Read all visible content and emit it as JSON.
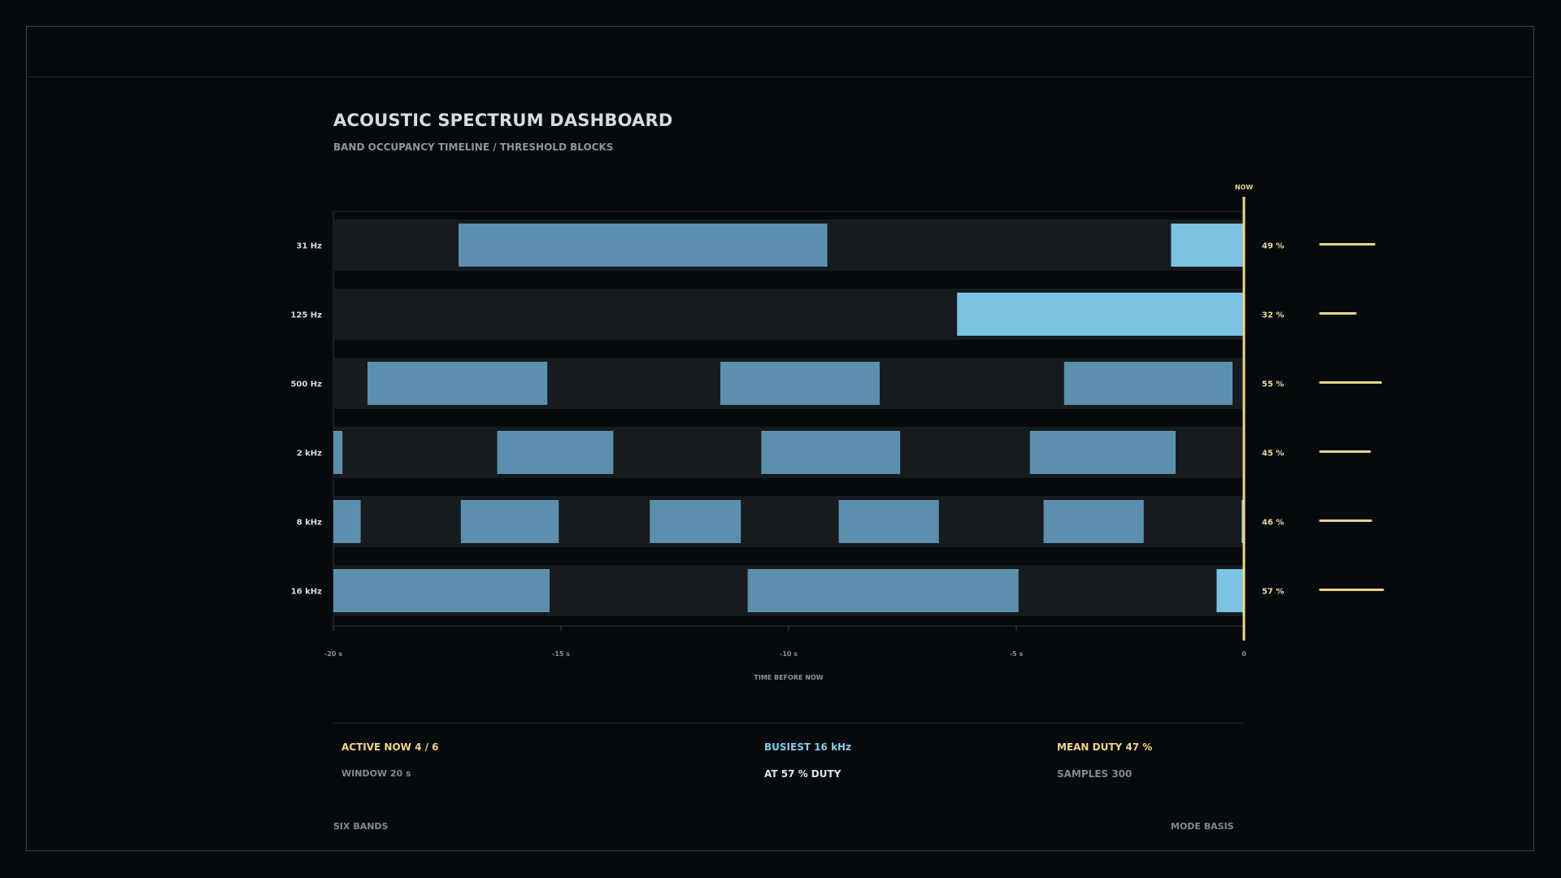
{
  "header": {
    "title": "ACOUSTIC SPECTRUM DASHBOARD",
    "subtitle": "BAND OCCUPANCY TIMELINE / THRESHOLD BLOCKS"
  },
  "chart_data": {
    "type": "timeline",
    "xlabel": "TIME BEFORE NOW",
    "xlim": [
      -20,
      0
    ],
    "x_ticks": [
      {
        "value": -20,
        "label": "-20 s"
      },
      {
        "value": -15,
        "label": "-15 s"
      },
      {
        "value": -10,
        "label": "-10 s"
      },
      {
        "value": -5,
        "label": "-5 s"
      },
      {
        "value": 0,
        "label": "0"
      }
    ],
    "now_label": "NOW",
    "colors": {
      "block": "#5b8fad",
      "active_block": "#7cc3e1",
      "now_line": "#f1d48a",
      "duty_bar": "#ecd08f",
      "row_bg": "#161c1e"
    },
    "bands": [
      {
        "label": "31 Hz",
        "duty_label": "49 %",
        "duty": 49,
        "active": true,
        "blocks": [
          [
            -17.25,
            -9.15
          ],
          [
            -1.6,
            0
          ]
        ]
      },
      {
        "label": "125 Hz",
        "duty_label": "32 %",
        "duty": 32,
        "active": true,
        "blocks": [
          [
            -6.3,
            0
          ]
        ]
      },
      {
        "label": "500 Hz",
        "duty_label": "55 %",
        "duty": 55,
        "active": false,
        "blocks": [
          [
            -19.25,
            -15.3
          ],
          [
            -11.5,
            -8.0
          ],
          [
            -3.95,
            -0.25
          ]
        ]
      },
      {
        "label": "2 kHz",
        "duty_label": "45 %",
        "duty": 45,
        "active": false,
        "blocks": [
          [
            -20,
            -19.8
          ],
          [
            -16.4,
            -13.85
          ],
          [
            -10.6,
            -7.55
          ],
          [
            -4.7,
            -1.5
          ]
        ]
      },
      {
        "label": "8 kHz",
        "duty_label": "46 %",
        "duty": 46,
        "active": true,
        "blocks": [
          [
            -20,
            -19.4
          ],
          [
            -17.2,
            -15.05
          ],
          [
            -13.05,
            -11.05
          ],
          [
            -8.9,
            -6.7
          ],
          [
            -4.4,
            -2.2
          ],
          [
            -0.05,
            0
          ]
        ]
      },
      {
        "label": "16 kHz",
        "duty_label": "57 %",
        "duty": 57,
        "active": true,
        "blocks": [
          [
            -20,
            -15.25
          ],
          [
            -10.9,
            -4.95
          ],
          [
            -0.6,
            0
          ]
        ]
      }
    ]
  },
  "summary": {
    "active_now": "ACTIVE NOW 4 / 6",
    "window": "WINDOW 20 s",
    "busiest": "BUSIEST 16 kHz",
    "busiest_duty": "AT  57 % DUTY",
    "mean_duty": "MEAN DUTY  47 %",
    "samples": "SAMPLES 300"
  },
  "footer": {
    "left": "SIX BANDS",
    "right": "MODE BASIS"
  }
}
